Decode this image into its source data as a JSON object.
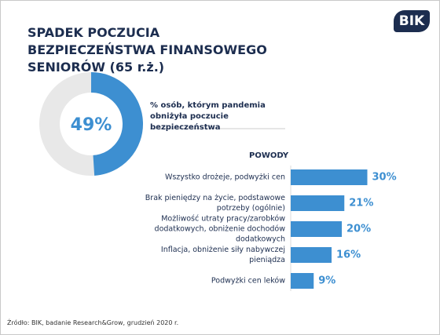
{
  "title": "SPADEK POCZUCIA BEZPIECZEŃSTWA FINANSOWEGO SENIORÓW (65 r.ż.)",
  "logo": "BIK",
  "source": "Źródło: BIK, badanie Research&Grow, grudzień 2020 r.",
  "chart_data": [
    {
      "type": "donut",
      "values": [
        49
      ],
      "value_labels": [
        "49%"
      ],
      "color": "#3d8fd1",
      "track_color": "#e8e8e8",
      "label": "% osób, którym pandemia obniżyła poczucie bezpieczeństwa"
    },
    {
      "type": "bar",
      "title": "POWODY",
      "categories": [
        "Wszystko drożeje, podwyżki cen",
        "Brak pieniędzy na życie, podstawowe potrzeby (ogólnie)",
        "Możliwość utraty pracy/zarobków dodatkowych, obniżenie dochodów dodatkowych",
        "Inflacja, obniżenie siły nabywczej pieniądza",
        "Podwyżki cen leków"
      ],
      "values": [
        30,
        21,
        20,
        16,
        9
      ],
      "value_labels": [
        "30%",
        "21%",
        "20%",
        "16%",
        "9%"
      ],
      "color": "#3d8fd1"
    }
  ]
}
